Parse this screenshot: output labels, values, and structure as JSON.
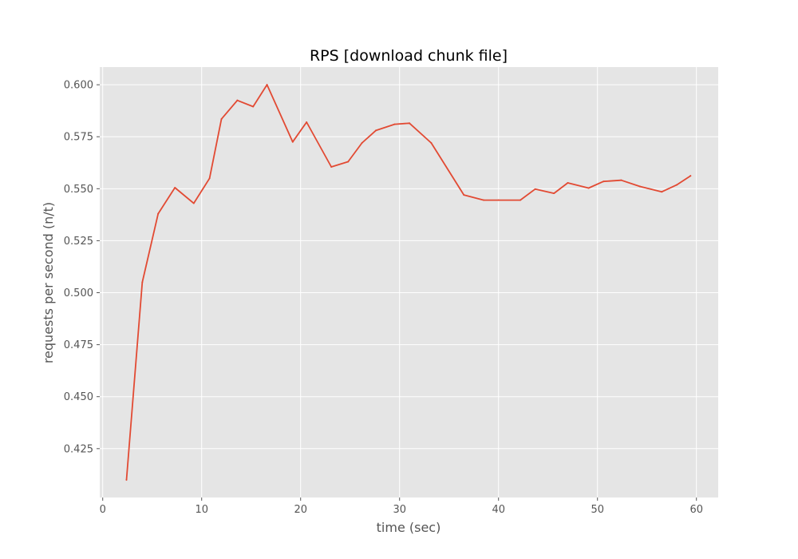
{
  "chart_data": {
    "type": "line",
    "title": "RPS [download chunk file]",
    "xlabel": "time (sec)",
    "ylabel": "requests per second (n/t)",
    "xlim": [
      -0.3,
      62.2
    ],
    "ylim": [
      0.4015,
      0.6085
    ],
    "xticks": [
      0,
      10,
      20,
      30,
      40,
      50,
      60
    ],
    "yticks": [
      0.425,
      0.45,
      0.475,
      0.5,
      0.525,
      0.55,
      0.575,
      0.6
    ],
    "grid": true,
    "colors": {
      "background": "#e5e5e5",
      "line": "#e24a33"
    },
    "series": [
      {
        "x": [
          2.4,
          4.0,
          5.6,
          7.3,
          9.2,
          10.8,
          12.0,
          13.6,
          15.2,
          16.6,
          19.2,
          20.6,
          23.1,
          24.8,
          26.2,
          27.6,
          29.5,
          31.0,
          33.2,
          36.5,
          38.5,
          40.0,
          42.2,
          43.7,
          45.6,
          47.0,
          49.1,
          50.6,
          52.4,
          54.3,
          56.5,
          58.0,
          59.4
        ],
        "y": [
          0.41,
          0.505,
          0.538,
          0.5505,
          0.543,
          0.555,
          0.5835,
          0.5925,
          0.5895,
          0.6,
          0.5725,
          0.582,
          0.5605,
          0.563,
          0.572,
          0.578,
          0.581,
          0.5815,
          0.572,
          0.547,
          0.5445,
          0.5445,
          0.5445,
          0.5498,
          0.5478,
          0.5528,
          0.5503,
          0.5535,
          0.5541,
          0.5511,
          0.5485,
          0.5518,
          0.5562
        ]
      }
    ]
  }
}
